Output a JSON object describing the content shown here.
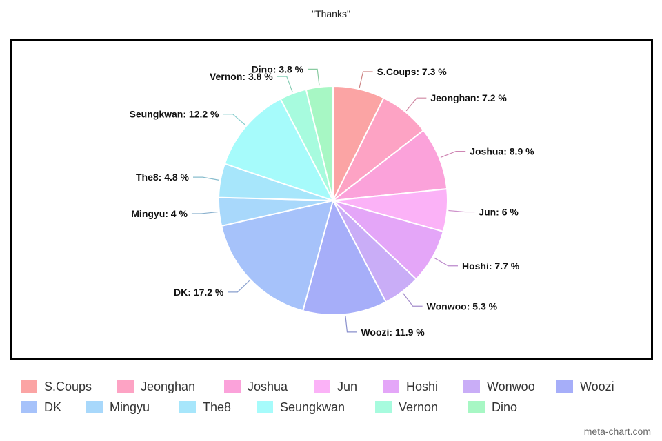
{
  "chart_data": {
    "type": "pie",
    "title": "\"Thanks\"",
    "label_format": "{name}: {value} %",
    "slices": [
      {
        "name": "S.Coups",
        "value": 7.3,
        "color": "#fba4a4"
      },
      {
        "name": "Jeonghan",
        "value": 7.2,
        "color": "#fda3c4"
      },
      {
        "name": "Joshua",
        "value": 8.9,
        "color": "#fba2da"
      },
      {
        "name": "Jun",
        "value": 6,
        "color": "#fbb2f7"
      },
      {
        "name": "Hoshi",
        "value": 7.7,
        "color": "#e4a6f8"
      },
      {
        "name": "Wonwoo",
        "value": 5.3,
        "color": "#c9adf7"
      },
      {
        "name": "Woozi",
        "value": 11.9,
        "color": "#a6aef9"
      },
      {
        "name": "DK",
        "value": 17.2,
        "color": "#a6c2fa"
      },
      {
        "name": "Mingyu",
        "value": 4,
        "color": "#a8d8fb"
      },
      {
        "name": "The8",
        "value": 4.8,
        "color": "#a7e6fb"
      },
      {
        "name": "Seungkwan",
        "value": 12.2,
        "color": "#a6fbfb"
      },
      {
        "name": "Vernon",
        "value": 3.8,
        "color": "#a7fbde"
      },
      {
        "name": "Dino",
        "value": 3.8,
        "color": "#a7f7c4"
      }
    ],
    "legend_position": "bottom"
  },
  "watermark": "meta-chart.com"
}
